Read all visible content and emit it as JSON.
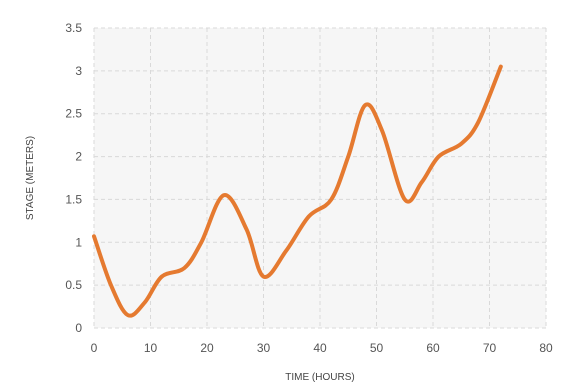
{
  "chart_data": {
    "type": "line",
    "title": "",
    "xlabel": "TIME (HOURS)",
    "ylabel": "STAGE (METERS)",
    "xlim": [
      0,
      80
    ],
    "ylim": [
      0,
      3.5
    ],
    "x_ticks": [
      0,
      10,
      20,
      30,
      40,
      50,
      60,
      70,
      80
    ],
    "y_ticks": [
      "0",
      "0.5",
      "1",
      "1.5",
      "2",
      "2.5",
      "3",
      "3.5"
    ],
    "grid": true,
    "line_color": "#e57a30",
    "series": [
      {
        "x": [
          0,
          3,
          6,
          9,
          12,
          16,
          19,
          23,
          27,
          30,
          34,
          38,
          42,
          45,
          48,
          51,
          55,
          58,
          61,
          65,
          68,
          72
        ],
        "y": [
          1.07,
          0.5,
          0.15,
          0.3,
          0.6,
          0.7,
          1.0,
          1.55,
          1.15,
          0.6,
          0.9,
          1.3,
          1.5,
          2.0,
          2.6,
          2.3,
          1.5,
          1.7,
          2.0,
          2.15,
          2.4,
          3.05
        ]
      }
    ]
  }
}
